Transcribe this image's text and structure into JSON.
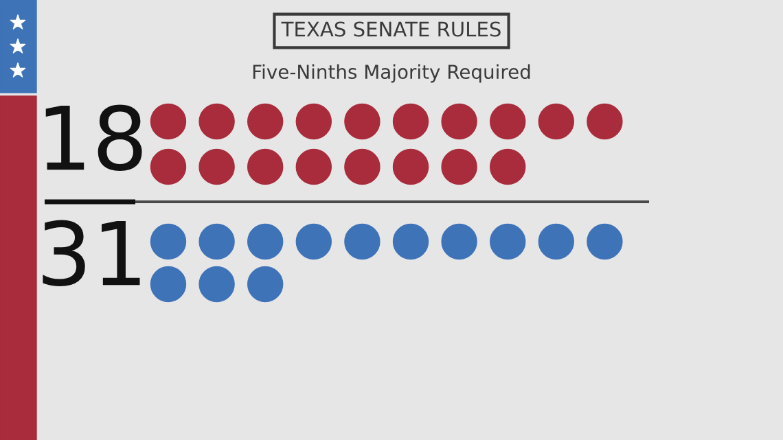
{
  "chart_data": {
    "type": "other",
    "title": "TEXAS SENATE RULES",
    "subtitle": "Five-Ninths Majority Required",
    "values": [
      18,
      31
    ],
    "colors": [
      "#a82c3c",
      "#3f73b8"
    ],
    "data_labels": true
  }
}
